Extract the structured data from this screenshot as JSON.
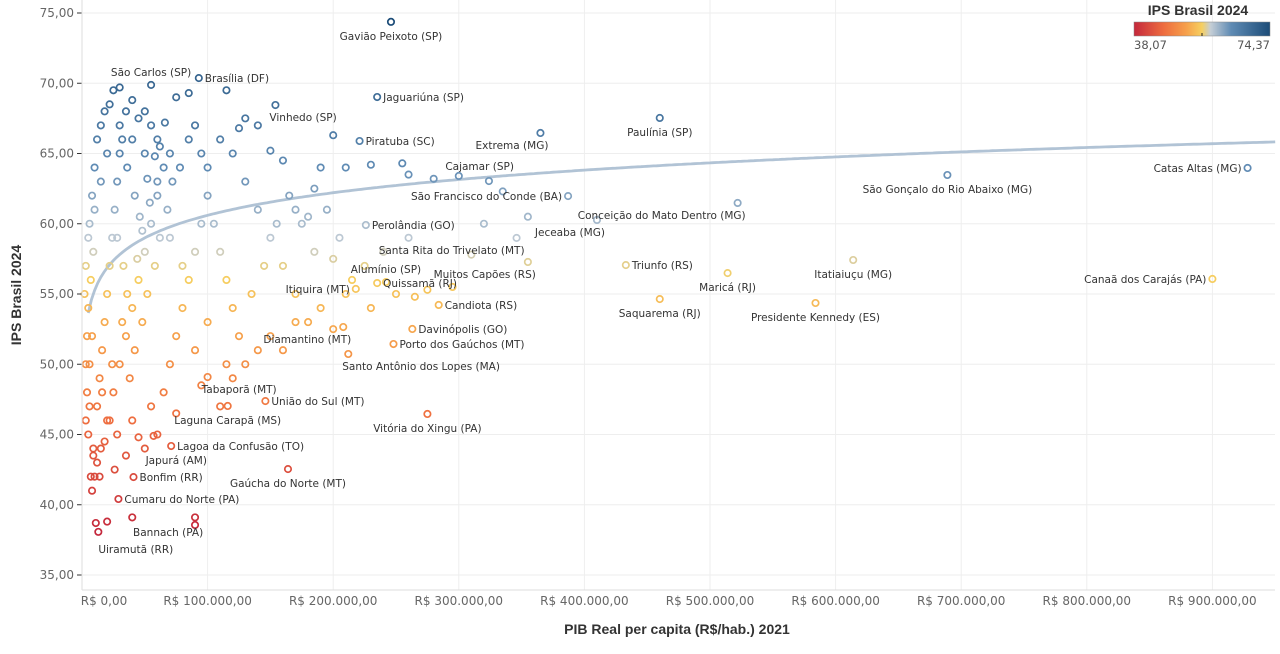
{
  "chart_data": {
    "type": "scatter",
    "title": "",
    "xlabel": "PIB Real per capita (R$/hab.) 2021",
    "ylabel": "IPS Brasil 2024",
    "x_unit": "R$ thousand per inhabitant",
    "xlim": [
      0,
      950
    ],
    "ylim": [
      35,
      75
    ],
    "grid": true,
    "x_ticks": [
      0,
      100,
      200,
      300,
      400,
      500,
      600,
      700,
      800,
      900
    ],
    "x_tick_labels": [
      "R$ 0,00",
      "R$ 100.000,00",
      "R$ 200.000,00",
      "R$ 300.000,00",
      "R$ 400.000,00",
      "R$ 500.000,00",
      "R$ 600.000,00",
      "R$ 700.000,00",
      "R$ 800.000,00",
      "R$ 900.000,00"
    ],
    "y_ticks": [
      35,
      40,
      45,
      50,
      55,
      60,
      65,
      70,
      75
    ],
    "y_tick_labels": [
      "35,00",
      "40,00",
      "45,00",
      "50,00",
      "55,00",
      "60,00",
      "65,00",
      "70,00",
      "75,00"
    ],
    "color_legend": {
      "title": "IPS Brasil 2024",
      "min": 38.07,
      "max": 74.37,
      "min_label": "38,07",
      "max_label": "74,37",
      "placement": "top-right",
      "stops": [
        {
          "value": 38.07,
          "color": "#c4283c"
        },
        {
          "value": 46.0,
          "color": "#ee6d3f"
        },
        {
          "value": 52.0,
          "color": "#f6a04b"
        },
        {
          "value": 56.22,
          "color": "#f6cf60"
        },
        {
          "value": 58.5,
          "color": "#c5ced6"
        },
        {
          "value": 64.0,
          "color": "#5f8bb4"
        },
        {
          "value": 74.37,
          "color": "#1c4c78"
        }
      ]
    },
    "trendline": {
      "type": "logarithmic",
      "equation": "y = 33.89 + 2.32 ln(x)",
      "x_unit": "R$",
      "x_from": 5000,
      "x_to": 950000,
      "color": "#a9bcd0"
    },
    "labeled_points": [
      {
        "name": "Gavião Peixoto (SP)",
        "x": 246,
        "y": 74.37
      },
      {
        "name": "São Carlos (SP)",
        "x": 55,
        "y": 69.88
      },
      {
        "name": "Brasília (DF)",
        "x": 93,
        "y": 70.37
      },
      {
        "name": "Jaguariúna (SP)",
        "x": 235,
        "y": 69.02
      },
      {
        "name": "Vinhedo (SP)",
        "x": 154,
        "y": 68.45
      },
      {
        "name": "Piratuba (SC)",
        "x": 221,
        "y": 65.89
      },
      {
        "name": "Extrema (MG)",
        "x": 365,
        "y": 66.46
      },
      {
        "name": "Paulínia (SP)",
        "x": 460,
        "y": 67.53
      },
      {
        "name": "Cajamar (SP)",
        "x": 324,
        "y": 63.04
      },
      {
        "name": "São Francisco do Conde (BA)",
        "x": 387,
        "y": 61.97
      },
      {
        "name": "Catas Altas (MG)",
        "x": 928,
        "y": 63.97
      },
      {
        "name": "São Gonçalo do Rio Abaixo (MG)",
        "x": 689,
        "y": 63.47
      },
      {
        "name": "Conceição do Mato Dentro (MG)",
        "x": 522,
        "y": 61.48
      },
      {
        "name": "Jeceaba (MG)",
        "x": 410,
        "y": 60.27
      },
      {
        "name": "Perolândia (GO)",
        "x": 226,
        "y": 59.91
      },
      {
        "name": "Santa Rita do Trivelato (MT)",
        "x": 346,
        "y": 58.99
      },
      {
        "name": "Muitos Capões (RS)",
        "x": 355,
        "y": 57.28
      },
      {
        "name": "Triunfo (RS)",
        "x": 433,
        "y": 57.06
      },
      {
        "name": "Itatiaiuçu (MG)",
        "x": 614,
        "y": 57.42
      },
      {
        "name": "Canaã dos Carajás (PA)",
        "x": 900,
        "y": 56.07
      },
      {
        "name": "Maricá (RJ)",
        "x": 514,
        "y": 56.49
      },
      {
        "name": "Saquarema (RJ)",
        "x": 460,
        "y": 54.64
      },
      {
        "name": "Presidente Kennedy (ES)",
        "x": 584,
        "y": 54.36
      },
      {
        "name": "Alumínio (SP)",
        "x": 242,
        "y": 55.85
      },
      {
        "name": "Quissamã (RJ)",
        "x": 235,
        "y": 55.78
      },
      {
        "name": "Itiquira (MT)",
        "x": 218,
        "y": 55.36
      },
      {
        "name": "Candiota (RS)",
        "x": 284,
        "y": 54.22
      },
      {
        "name": "Diamantino (MT)",
        "x": 208,
        "y": 52.65
      },
      {
        "name": "Davinópolis (GO)",
        "x": 263,
        "y": 52.51
      },
      {
        "name": "Porto dos Gaúchos (MT)",
        "x": 248,
        "y": 51.44
      },
      {
        "name": "Santo Antônio dos Lopes (MA)",
        "x": 212,
        "y": 50.73
      },
      {
        "name": "Tabaporã (MT)",
        "x": 100,
        "y": 49.09
      },
      {
        "name": "União do Sul (MT)",
        "x": 146,
        "y": 47.38
      },
      {
        "name": "Laguna Carapã (MS)",
        "x": 116,
        "y": 47.03
      },
      {
        "name": "Vitória do Xingu (PA)",
        "x": 275,
        "y": 46.46
      },
      {
        "name": "Lagoa da Confusão (TO)",
        "x": 71,
        "y": 44.18
      },
      {
        "name": "Japurá (AM)",
        "x": 57,
        "y": 44.9
      },
      {
        "name": "Bonfim (RR)",
        "x": 41,
        "y": 41.97
      },
      {
        "name": "Gaúcha do Norte (MT)",
        "x": 164,
        "y": 42.54
      },
      {
        "name": "Cumaru do Norte (PA)",
        "x": 29,
        "y": 40.41
      },
      {
        "name": "Bannach (PA)",
        "x": 90,
        "y": 38.56
      },
      {
        "name": "Uiramutã (RR)",
        "x": 13,
        "y": 38.07
      }
    ],
    "points": [
      [
        3,
        46
      ],
      [
        5,
        45
      ],
      [
        4,
        48
      ],
      [
        6,
        50
      ],
      [
        8,
        52
      ],
      [
        5,
        54
      ],
      [
        7,
        56
      ],
      [
        9,
        58
      ],
      [
        6,
        60
      ],
      [
        8,
        62
      ],
      [
        10,
        64
      ],
      [
        12,
        66
      ],
      [
        15,
        67
      ],
      [
        18,
        68
      ],
      [
        22,
        68.5
      ],
      [
        25,
        69.5
      ],
      [
        30,
        69.7
      ],
      [
        35,
        68
      ],
      [
        40,
        68.8
      ],
      [
        45,
        67.5
      ],
      [
        50,
        68
      ],
      [
        55,
        67
      ],
      [
        60,
        66
      ],
      [
        12,
        47
      ],
      [
        14,
        49
      ],
      [
        16,
        51
      ],
      [
        18,
        53
      ],
      [
        20,
        55
      ],
      [
        22,
        57
      ],
      [
        24,
        59
      ],
      [
        26,
        61
      ],
      [
        28,
        63
      ],
      [
        30,
        65
      ],
      [
        32,
        66
      ],
      [
        20,
        46
      ],
      [
        25,
        48
      ],
      [
        30,
        50
      ],
      [
        35,
        52
      ],
      [
        40,
        54
      ],
      [
        45,
        56
      ],
      [
        50,
        58
      ],
      [
        55,
        60
      ],
      [
        60,
        62
      ],
      [
        65,
        64
      ],
      [
        70,
        65
      ],
      [
        38,
        49
      ],
      [
        42,
        51
      ],
      [
        48,
        53
      ],
      [
        52,
        55
      ],
      [
        58,
        57
      ],
      [
        62,
        59
      ],
      [
        68,
        61
      ],
      [
        72,
        63
      ],
      [
        78,
        64
      ],
      [
        85,
        66
      ],
      [
        90,
        67
      ],
      [
        95,
        65
      ],
      [
        100,
        62
      ],
      [
        105,
        60
      ],
      [
        110,
        58
      ],
      [
        115,
        56
      ],
      [
        120,
        54
      ],
      [
        125,
        52
      ],
      [
        130,
        50
      ],
      [
        70,
        50
      ],
      [
        75,
        52
      ],
      [
        80,
        54
      ],
      [
        85,
        56
      ],
      [
        90,
        58
      ],
      [
        95,
        60
      ],
      [
        100,
        64
      ],
      [
        110,
        66
      ],
      [
        120,
        65
      ],
      [
        130,
        63
      ],
      [
        140,
        61
      ],
      [
        150,
        59
      ],
      [
        160,
        57
      ],
      [
        170,
        55
      ],
      [
        180,
        53
      ],
      [
        135,
        55
      ],
      [
        145,
        57
      ],
      [
        155,
        60
      ],
      [
        165,
        62
      ],
      [
        175,
        60
      ],
      [
        185,
        58
      ],
      [
        195,
        61
      ],
      [
        205,
        59
      ],
      [
        215,
        56
      ],
      [
        225,
        57
      ],
      [
        190,
        64
      ],
      [
        200,
        66.3
      ],
      [
        210,
        64
      ],
      [
        230,
        64.2
      ],
      [
        260,
        63.5
      ],
      [
        280,
        63.2
      ],
      [
        300,
        63.4
      ],
      [
        255,
        64.3
      ],
      [
        170,
        61
      ],
      [
        180,
        60.5
      ],
      [
        120,
        49
      ],
      [
        140,
        51
      ],
      [
        110,
        47
      ],
      [
        60,
        45
      ],
      [
        50,
        44
      ],
      [
        35,
        43.5
      ],
      [
        28,
        45
      ],
      [
        15,
        44
      ],
      [
        10,
        42
      ],
      [
        8,
        41
      ],
      [
        12,
        43
      ],
      [
        18,
        44.5
      ],
      [
        22,
        46
      ],
      [
        40,
        46
      ],
      [
        55,
        47
      ],
      [
        65,
        48
      ],
      [
        90,
        51
      ],
      [
        100,
        53
      ],
      [
        80,
        57
      ],
      [
        70,
        59
      ],
      [
        60,
        63
      ],
      [
        50,
        65
      ],
      [
        40,
        66
      ],
      [
        30,
        67
      ],
      [
        20,
        65
      ],
      [
        15,
        63
      ],
      [
        10,
        61
      ],
      [
        5,
        59
      ],
      [
        3,
        57
      ],
      [
        2,
        55
      ],
      [
        4,
        52
      ],
      [
        3,
        50
      ],
      [
        6,
        47
      ],
      [
        9,
        44
      ],
      [
        14,
        42
      ],
      [
        26,
        42.5
      ],
      [
        45,
        44.8
      ],
      [
        75,
        46.5
      ],
      [
        95,
        48.5
      ],
      [
        115,
        50
      ],
      [
        150,
        52
      ],
      [
        160,
        51
      ],
      [
        170,
        53
      ],
      [
        190,
        54
      ],
      [
        200,
        52.5
      ],
      [
        210,
        55
      ],
      [
        230,
        54
      ],
      [
        250,
        55
      ],
      [
        265,
        54.8
      ],
      [
        275,
        55.3
      ],
      [
        295,
        55.5
      ],
      [
        310,
        57.8
      ],
      [
        320,
        60
      ],
      [
        335,
        62.3
      ],
      [
        355,
        60.5
      ],
      [
        240,
        58
      ],
      [
        260,
        59
      ],
      [
        200,
        57.5
      ],
      [
        185,
        62.5
      ],
      [
        160,
        64.5
      ],
      [
        140,
        67
      ],
      [
        130,
        67.5
      ],
      [
        115,
        69.5
      ],
      [
        125,
        66.8
      ],
      [
        150,
        65.2
      ],
      [
        75,
        69
      ],
      [
        85,
        69.3
      ],
      [
        11,
        38.7
      ],
      [
        20,
        38.8
      ],
      [
        40,
        39.1
      ],
      [
        90,
        39.1
      ],
      [
        7,
        42
      ],
      [
        9,
        43.5
      ],
      [
        16,
        48
      ],
      [
        24,
        50
      ],
      [
        32,
        53
      ],
      [
        36,
        55
      ],
      [
        44,
        57.5
      ],
      [
        48,
        59.5
      ],
      [
        54,
        61.5
      ],
      [
        62,
        65.5
      ],
      [
        66,
        67.2
      ],
      [
        36,
        64
      ],
      [
        42,
        62
      ],
      [
        28,
        59
      ],
      [
        33,
        57
      ],
      [
        46,
        60.5
      ],
      [
        52,
        63.2
      ],
      [
        58,
        64.8
      ]
    ]
  }
}
